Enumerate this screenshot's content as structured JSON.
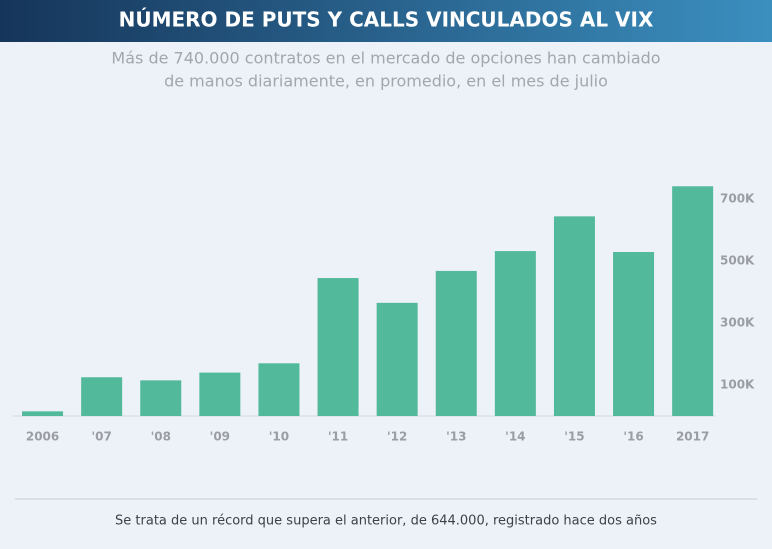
{
  "chart_data": {
    "type": "bar",
    "title": "NÚMERO DE PUTS Y CALLS VINCULADOS AL VIX",
    "subtitle": [
      "Más de 740.000 contratos en el mercado de opciones han cambiado",
      "de manos diariamente, en promedio, en el mes de julio"
    ],
    "categories": [
      "2006",
      "'07",
      "'08",
      "'09",
      "'10",
      "'11",
      "'12",
      "'13",
      "'14",
      "'15",
      "'16",
      "2017"
    ],
    "values": [
      15000,
      125000,
      115000,
      140000,
      170000,
      445000,
      365000,
      468000,
      532000,
      644000,
      529000,
      741000
    ],
    "color": "#52b99a",
    "ylim": [
      0,
      800000
    ],
    "yticks": [
      {
        "value": 100000,
        "label": "100K"
      },
      {
        "value": 300000,
        "label": "300K"
      },
      {
        "value": 500000,
        "label": "500K"
      },
      {
        "value": 700000,
        "label": "700K"
      }
    ],
    "grid": false,
    "footnote": "Se trata de un récord que supera el anterior, de 644.000, registrado hace dos años"
  }
}
